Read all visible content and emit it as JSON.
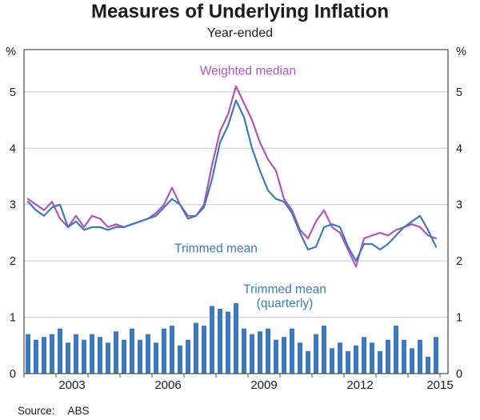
{
  "chart_data": {
    "type": "combo",
    "title": "Measures of Underlying Inflation",
    "subtitle": "Year-ended",
    "unit_label": "%",
    "ylim": [
      0,
      5.75
    ],
    "yticks": [
      0,
      1,
      2,
      3,
      4,
      5
    ],
    "xlim": [
      2002,
      2015.25
    ],
    "xticks": {
      "labels": [
        "2003",
        "2006",
        "2009",
        "2012",
        "2015"
      ],
      "positions": [
        2003.5,
        2006.5,
        2009.5,
        2012.5,
        2015.0
      ]
    },
    "x_start": 2002.125,
    "x_step": 0.25,
    "grid": true,
    "grid_color": "#c9c9c9",
    "frame_color": "#4a4a4a",
    "series": [
      {
        "name": "Weighted median",
        "type": "line",
        "color": "#b353bd",
        "values": [
          3.1,
          3.0,
          2.9,
          3.05,
          2.75,
          2.6,
          2.8,
          2.6,
          2.8,
          2.75,
          2.6,
          2.65,
          2.6,
          2.65,
          2.7,
          2.75,
          2.85,
          3.0,
          3.3,
          3.0,
          2.8,
          2.8,
          3.0,
          3.7,
          4.3,
          4.6,
          5.1,
          4.8,
          4.5,
          4.1,
          3.8,
          3.6,
          3.1,
          2.9,
          2.55,
          2.4,
          2.7,
          2.9,
          2.6,
          2.5,
          2.2,
          1.9,
          2.4,
          2.45,
          2.5,
          2.45,
          2.55,
          2.6,
          2.65,
          2.6,
          2.45,
          2.4
        ]
      },
      {
        "name": "Trimmed mean",
        "type": "line",
        "color": "#3b7ac2",
        "values": [
          3.05,
          2.9,
          2.8,
          2.95,
          3.0,
          2.6,
          2.7,
          2.55,
          2.6,
          2.6,
          2.55,
          2.6,
          2.6,
          2.65,
          2.7,
          2.75,
          2.8,
          2.95,
          3.1,
          3.0,
          2.75,
          2.8,
          2.95,
          3.45,
          4.1,
          4.4,
          4.85,
          4.55,
          4.0,
          3.6,
          3.25,
          3.1,
          3.05,
          2.85,
          2.5,
          2.2,
          2.25,
          2.6,
          2.65,
          2.6,
          2.25,
          2.0,
          2.3,
          2.3,
          2.2,
          2.3,
          2.45,
          2.6,
          2.7,
          2.8,
          2.55,
          2.25
        ]
      },
      {
        "name": "Trimmed mean (quarterly)",
        "type": "bar",
        "color": "#3b7ac2",
        "values": [
          0.7,
          0.6,
          0.65,
          0.7,
          0.8,
          0.55,
          0.7,
          0.6,
          0.7,
          0.65,
          0.55,
          0.75,
          0.6,
          0.8,
          0.6,
          0.7,
          0.55,
          0.8,
          0.85,
          0.5,
          0.6,
          0.9,
          0.85,
          1.2,
          1.15,
          1.1,
          1.25,
          0.8,
          0.7,
          0.75,
          0.8,
          0.6,
          0.65,
          0.8,
          0.55,
          0.4,
          0.7,
          0.85,
          0.45,
          0.55,
          0.4,
          0.5,
          0.65,
          0.55,
          0.4,
          0.6,
          0.85,
          0.6,
          0.45,
          0.6,
          0.3,
          0.65
        ]
      }
    ],
    "annotations": [
      {
        "text": "Weighted median",
        "x": 2009.0,
        "y": 5.3,
        "color": "#b353bd",
        "size": 15.5
      },
      {
        "text": "Trimmed mean",
        "x": 2008.0,
        "y": 2.15,
        "color": "#3b7ac2",
        "size": 15.5
      },
      {
        "text": "Trimmed mean",
        "x": 2010.15,
        "y": 1.43,
        "color": "#3b7ac2",
        "size": 15.5
      },
      {
        "text": "(quarterly)",
        "x": 2010.15,
        "y": 1.18,
        "color": "#3b7ac2",
        "size": 15.5
      }
    ],
    "source": {
      "label": "Source:",
      "value": "ABS"
    }
  }
}
